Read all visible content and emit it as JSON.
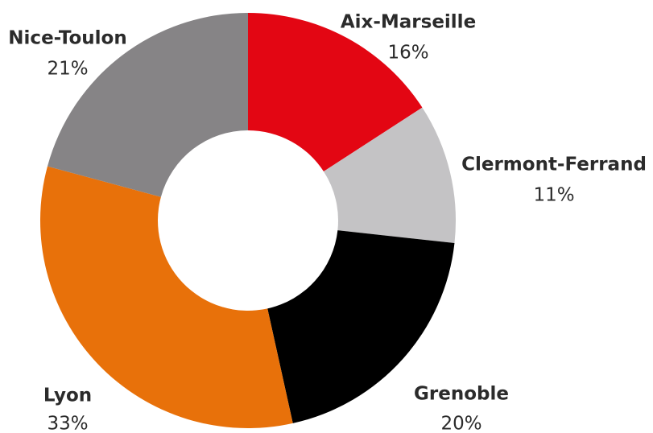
{
  "chart_data": {
    "type": "donut",
    "categories": [
      "Aix-Marseille",
      "Clermont-Ferrand",
      "Grenoble",
      "Lyon",
      "Nice-Toulon"
    ],
    "values": [
      16,
      11,
      20,
      33,
      21
    ],
    "value_labels": [
      "16%",
      "11%",
      "20%",
      "33%",
      "21%"
    ],
    "colors": [
      "#e30613",
      "#c4c3c5",
      "#000000",
      "#e8710a",
      "#868486"
    ]
  }
}
